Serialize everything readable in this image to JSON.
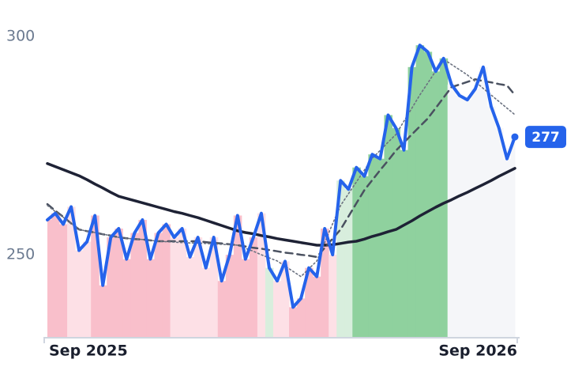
{
  "chart_data": {
    "type": "line",
    "categories": [
      "Sep 2025",
      null,
      null,
      null,
      null,
      null,
      null,
      null,
      null,
      null,
      null,
      null,
      null,
      null,
      null,
      null,
      null,
      null,
      null,
      null,
      null,
      null,
      null,
      null,
      null,
      null,
      null,
      null,
      null,
      null,
      null,
      null,
      null,
      null,
      null,
      null,
      null,
      null,
      null,
      null,
      null,
      null,
      null,
      null,
      null,
      null,
      null,
      null,
      null,
      null,
      null,
      null,
      null,
      null,
      null,
      null,
      null,
      null,
      null,
      "Sep 2026"
    ],
    "ylim": [
      231,
      308
    ],
    "yticks": [
      250,
      300
    ],
    "grid": false,
    "series": [
      {
        "color": "#2563eb",
        "style": "solid",
        "last_label": true,
        "values": [
          258,
          259.5,
          257,
          261,
          251,
          253,
          259,
          243,
          254,
          256,
          249,
          255,
          258,
          249,
          255,
          257,
          254,
          256,
          249.5,
          254,
          247,
          254,
          244,
          250,
          259,
          249,
          254,
          259.5,
          247,
          244,
          248.5,
          238,
          240,
          247,
          245,
          256,
          250,
          267,
          265,
          270,
          268,
          273,
          272,
          282,
          279,
          274,
          293,
          298,
          296.5,
          292,
          295,
          289,
          286.5,
          285.5,
          288,
          293,
          284,
          279,
          272,
          277
        ],
        "fill_colors": [
          "#f9bfcb",
          "#f9bfcb",
          "#f9bfcb",
          "#fde0e6",
          "#fde0e6",
          "#fde0e6",
          "#f9bfcb",
          "#f9bfcb",
          "#f9bfcb",
          "#f9bfcb",
          "#f9bfcb",
          "#f9bfcb",
          "#f9bfcb",
          "#f9bfcb",
          "#f9bfcb",
          "#f9bfcb",
          "#fde0e6",
          "#fde0e6",
          "#fde0e6",
          "#fde0e6",
          "#fde0e6",
          "#fde0e6",
          "#f9bfcb",
          "#f9bfcb",
          "#f9bfcb",
          "#f9bfcb",
          "#f9bfcb",
          "#fde0e6",
          "#d8eedd",
          "#fde0e6",
          "#fde0e6",
          "#f9bfcb",
          "#f9bfcb",
          "#f9bfcb",
          "#f9bfcb",
          "#f9bfcb",
          "#fde0e6",
          "#d8eedd",
          "#d8eedd",
          "#8fd19e",
          "#8fd19e",
          "#8fd19e",
          "#8fd19e",
          "#8fd19e",
          "#8fd19e",
          "#8fd19e",
          "#8fd19e",
          "#8fd19e",
          "#8fd19e",
          "#8fd19e",
          "#8fd19e",
          "#f5f6f9",
          "#f5f6f9",
          "#f5f6f9",
          "#f5f6f9",
          "#f5f6f9",
          "#f5f6f9",
          "#f5f6f9",
          "#f5f6f9",
          "#f5f6f9"
        ]
      },
      {
        "color": "#1e2235",
        "style": "solid",
        "values": [
          270.9,
          270.2,
          269.5,
          268.8,
          268.1,
          267.2,
          266.2,
          265.3,
          264.3,
          263.4,
          262.9,
          262.4,
          261.9,
          261.4,
          260.9,
          260.4,
          259.9,
          259.5,
          259,
          258.5,
          257.9,
          257.3,
          256.7,
          256.1,
          255.5,
          255.1,
          254.8,
          254.4,
          254.1,
          253.7,
          253.4,
          253.1,
          252.8,
          252.5,
          252.2,
          252.2,
          252.3,
          252.6,
          252.9,
          253.1,
          253.6,
          254.2,
          254.7,
          255.3,
          255.8,
          256.8,
          257.8,
          258.9,
          259.9,
          260.9,
          261.8,
          262.6,
          263.5,
          264.3,
          265.2,
          266.1,
          267,
          268,
          268.9,
          269.8
        ]
      },
      {
        "color": "#4a5160",
        "style": "dashed",
        "values": [
          261.6,
          260.1,
          258.7,
          257.2,
          255.8,
          255.4,
          255.1,
          254.7,
          254.4,
          254,
          253.8,
          253.6,
          253.5,
          253.3,
          253.1,
          253.1,
          253.1,
          253.1,
          253.1,
          253.1,
          252.9,
          252.7,
          252.6,
          252.4,
          252.2,
          251.9,
          251.6,
          251.4,
          251.1,
          250.8,
          250.5,
          250.3,
          250,
          249.8,
          249.5,
          251.6,
          253.7,
          255.8,
          258.8,
          261.8,
          264.8,
          267.1,
          269.4,
          271.6,
          273.9,
          275.7,
          277.6,
          279.4,
          281.2,
          283.6,
          286,
          288.4,
          289,
          289.6,
          290.2,
          289.8,
          289.5,
          289.1,
          288.8,
          286.6
        ]
      },
      {
        "color": "#6b7280",
        "style": "dotted",
        "values": [
          261.3,
          259.9,
          258.6,
          257.2,
          255.8,
          255.4,
          255.1,
          254.7,
          254.4,
          254,
          253.8,
          253.6,
          253.5,
          253.3,
          253.1,
          253,
          252.9,
          252.8,
          252.7,
          252.7,
          252.6,
          252.5,
          252.4,
          252.3,
          252.2,
          251.5,
          250.8,
          250,
          249.3,
          248.6,
          247.4,
          246.2,
          245,
          246.8,
          248.6,
          252.8,
          257.1,
          261.3,
          264,
          266.7,
          269.4,
          272.1,
          273.9,
          275.8,
          277.6,
          280.6,
          283.6,
          286.6,
          289.3,
          292.1,
          294.8,
          293.6,
          292.4,
          291.2,
          289.7,
          288.1,
          286.6,
          285.1,
          283.6,
          282.1
        ]
      }
    ]
  }
}
